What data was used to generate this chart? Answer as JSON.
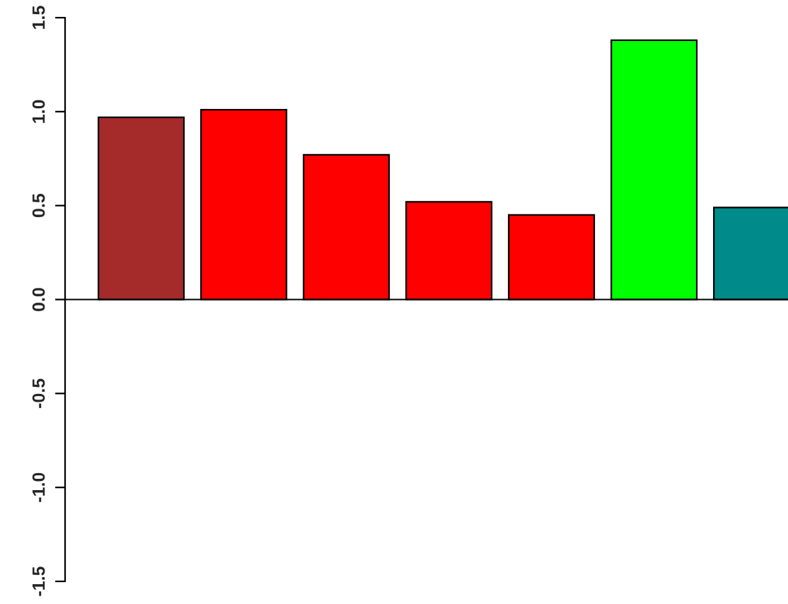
{
  "chart_data": {
    "type": "bar",
    "categories": [
      null,
      null,
      null,
      null,
      null,
      null,
      null
    ],
    "values": [
      0.97,
      1.01,
      0.77,
      0.52,
      0.45,
      1.38,
      0.49
    ],
    "colors": [
      "#a52a2a",
      "#ff0000",
      "#ff0000",
      "#ff0000",
      "#ff0000",
      "#00ff00",
      "#008b8b"
    ],
    "ylim": [
      -1.5,
      1.5
    ],
    "yticks": [
      -1.5,
      {
        "value": -1,
        "label": "-1.0"
      },
      -0.5,
      {
        "value": 0,
        "label": "0.0"
      },
      0.5,
      {
        "value": 1,
        "label": "1.0"
      },
      1.5
    ],
    "ref_lines": [
      {
        "axis": "y",
        "value": 0,
        "color": "#000000"
      }
    ],
    "grid": false,
    "legend": false
  }
}
